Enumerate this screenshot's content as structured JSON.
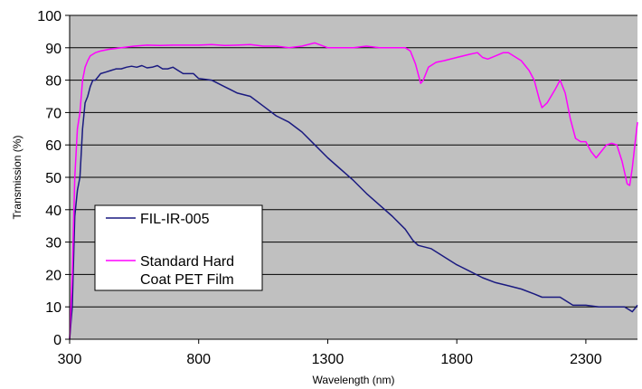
{
  "chart_data": {
    "type": "line",
    "title": "",
    "xlabel": "Wavelength (nm)",
    "ylabel": "Transmission (%)",
    "xlim": [
      300,
      2500
    ],
    "ylim": [
      0,
      100
    ],
    "x_ticks": [
      300,
      800,
      1300,
      1800,
      2300
    ],
    "y_ticks": [
      0,
      10,
      20,
      30,
      40,
      50,
      60,
      70,
      80,
      90,
      100
    ],
    "grid": "horizontal",
    "legend_position": "lower-left",
    "plot_background": "#c0c0c0",
    "series": [
      {
        "name": "FIL-IR-005",
        "color": "#1a1a80",
        "points": [
          [
            300,
            0
          ],
          [
            310,
            10
          ],
          [
            320,
            38
          ],
          [
            330,
            46
          ],
          [
            340,
            50
          ],
          [
            350,
            65
          ],
          [
            360,
            73
          ],
          [
            370,
            75
          ],
          [
            380,
            78
          ],
          [
            390,
            80
          ],
          [
            400,
            80
          ],
          [
            420,
            82
          ],
          [
            440,
            82.5
          ],
          [
            460,
            83
          ],
          [
            480,
            83.5
          ],
          [
            500,
            83.5
          ],
          [
            520,
            84
          ],
          [
            540,
            84.3
          ],
          [
            560,
            84
          ],
          [
            580,
            84.5
          ],
          [
            600,
            83.8
          ],
          [
            620,
            84
          ],
          [
            640,
            84.5
          ],
          [
            660,
            83.5
          ],
          [
            680,
            83.5
          ],
          [
            700,
            84
          ],
          [
            720,
            83
          ],
          [
            740,
            82
          ],
          [
            760,
            82
          ],
          [
            780,
            82
          ],
          [
            800,
            80.5
          ],
          [
            850,
            80
          ],
          [
            900,
            78
          ],
          [
            950,
            76
          ],
          [
            1000,
            75
          ],
          [
            1050,
            72
          ],
          [
            1100,
            69
          ],
          [
            1150,
            67
          ],
          [
            1200,
            64
          ],
          [
            1250,
            60
          ],
          [
            1300,
            56
          ],
          [
            1350,
            52.5
          ],
          [
            1400,
            49
          ],
          [
            1450,
            45
          ],
          [
            1500,
            41.5
          ],
          [
            1550,
            38
          ],
          [
            1600,
            34
          ],
          [
            1630,
            30.5
          ],
          [
            1650,
            29
          ],
          [
            1700,
            28
          ],
          [
            1750,
            25.5
          ],
          [
            1800,
            23
          ],
          [
            1850,
            21
          ],
          [
            1900,
            19
          ],
          [
            1950,
            17.5
          ],
          [
            2000,
            16.5
          ],
          [
            2050,
            15.5
          ],
          [
            2100,
            14
          ],
          [
            2130,
            13
          ],
          [
            2200,
            13
          ],
          [
            2250,
            10.5
          ],
          [
            2300,
            10.5
          ],
          [
            2350,
            10
          ],
          [
            2400,
            10
          ],
          [
            2450,
            10
          ],
          [
            2470,
            9
          ],
          [
            2480,
            8.5
          ],
          [
            2490,
            9.5
          ],
          [
            2500,
            10.5
          ]
        ]
      },
      {
        "name": "Standard Hard Coat PET Film",
        "color": "#ff00ff",
        "points": [
          [
            300,
            0
          ],
          [
            310,
            20
          ],
          [
            320,
            50
          ],
          [
            330,
            65
          ],
          [
            340,
            70
          ],
          [
            350,
            80
          ],
          [
            360,
            84
          ],
          [
            370,
            86
          ],
          [
            380,
            87.5
          ],
          [
            400,
            88.5
          ],
          [
            420,
            89
          ],
          [
            450,
            89.5
          ],
          [
            500,
            90
          ],
          [
            550,
            90.5
          ],
          [
            600,
            90.8
          ],
          [
            650,
            90.7
          ],
          [
            700,
            90.8
          ],
          [
            750,
            90.8
          ],
          [
            800,
            90.8
          ],
          [
            850,
            91
          ],
          [
            900,
            90.7
          ],
          [
            950,
            90.8
          ],
          [
            1000,
            91
          ],
          [
            1050,
            90.5
          ],
          [
            1100,
            90.5
          ],
          [
            1150,
            90
          ],
          [
            1200,
            90.5
          ],
          [
            1250,
            91.5
          ],
          [
            1300,
            90
          ],
          [
            1350,
            90
          ],
          [
            1400,
            90
          ],
          [
            1450,
            90.5
          ],
          [
            1500,
            90
          ],
          [
            1550,
            90
          ],
          [
            1600,
            90
          ],
          [
            1620,
            89
          ],
          [
            1640,
            85
          ],
          [
            1660,
            79
          ],
          [
            1670,
            80
          ],
          [
            1690,
            84
          ],
          [
            1720,
            85.5
          ],
          [
            1750,
            86
          ],
          [
            1800,
            87
          ],
          [
            1850,
            88
          ],
          [
            1880,
            88.5
          ],
          [
            1900,
            87
          ],
          [
            1920,
            86.5
          ],
          [
            1950,
            87.5
          ],
          [
            1980,
            88.5
          ],
          [
            2000,
            88.5
          ],
          [
            2050,
            86
          ],
          [
            2080,
            83
          ],
          [
            2100,
            80
          ],
          [
            2120,
            74
          ],
          [
            2130,
            71.5
          ],
          [
            2150,
            73
          ],
          [
            2180,
            77
          ],
          [
            2200,
            80
          ],
          [
            2220,
            76
          ],
          [
            2240,
            68
          ],
          [
            2260,
            62
          ],
          [
            2280,
            61
          ],
          [
            2300,
            61
          ],
          [
            2320,
            58
          ],
          [
            2340,
            56
          ],
          [
            2360,
            58
          ],
          [
            2380,
            60
          ],
          [
            2400,
            60.5
          ],
          [
            2420,
            60
          ],
          [
            2440,
            55
          ],
          [
            2460,
            48
          ],
          [
            2470,
            47.5
          ],
          [
            2480,
            53
          ],
          [
            2490,
            60
          ],
          [
            2500,
            67
          ]
        ]
      }
    ]
  }
}
